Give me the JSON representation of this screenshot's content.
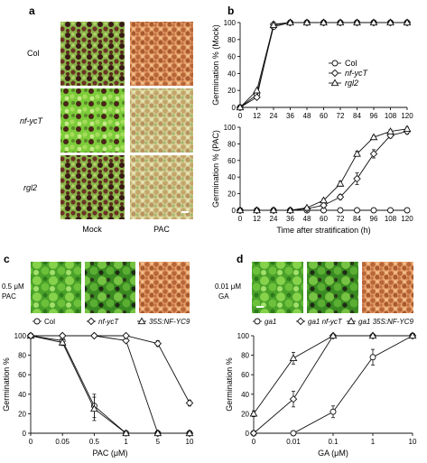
{
  "panel_letters": {
    "a": "a",
    "b": "b",
    "c": "c",
    "d": "d"
  },
  "panel_a": {
    "row_labels": [
      "Col",
      "nf-ycT",
      "rgl2"
    ],
    "column_labels": [
      "Mock",
      "PAC"
    ]
  },
  "panel_c_photo_label": [
    "0.5 μM",
    "PAC"
  ],
  "panel_d_photo_label": [
    "0.01 μM",
    "GA"
  ],
  "colors": {
    "ink": "#111111",
    "seedling_green": "#7ccc3a",
    "seed_brown": "#b8663a",
    "dark_purple": "#4a2418"
  },
  "chart_data": [
    {
      "id": "b_mock",
      "type": "line",
      "ylabel": "Germination % (Mock)",
      "xlabel": "",
      "x": [
        0,
        12,
        24,
        36,
        48,
        60,
        72,
        84,
        96,
        108,
        120
      ],
      "x_ticks": [
        "0",
        "12",
        "24",
        "36",
        "48",
        "60",
        "72",
        "84",
        "96",
        "108",
        "120"
      ],
      "y_ticks": [
        "0",
        "20",
        "40",
        "60",
        "80",
        "100"
      ],
      "xlim": [
        0,
        120
      ],
      "ylim": [
        0,
        100
      ],
      "legend": "right",
      "series": [
        {
          "name": "Col",
          "marker": "circle",
          "values": [
            0,
            15,
            95,
            100,
            100,
            100,
            100,
            100,
            100,
            100,
            100
          ]
        },
        {
          "name": "nf-ycT",
          "marker": "diamond",
          "values": [
            0,
            12,
            98,
            100,
            100,
            100,
            100,
            100,
            100,
            100,
            100
          ]
        },
        {
          "name": "rgl2",
          "marker": "triangle",
          "values": [
            0,
            20,
            97,
            100,
            100,
            100,
            100,
            100,
            100,
            100,
            100
          ]
        }
      ]
    },
    {
      "id": "b_pac",
      "type": "line",
      "ylabel": "Germination % (PAC)",
      "xlabel": "Time after stratification (h)",
      "x": [
        0,
        12,
        24,
        36,
        48,
        60,
        72,
        84,
        96,
        108,
        120
      ],
      "x_ticks": [
        "0",
        "12",
        "24",
        "36",
        "48",
        "60",
        "72",
        "84",
        "96",
        "108",
        "120"
      ],
      "y_ticks": [
        "0",
        "20",
        "40",
        "60",
        "80",
        "100"
      ],
      "xlim": [
        0,
        120
      ],
      "ylim": [
        0,
        100
      ],
      "series": [
        {
          "name": "Col",
          "marker": "circle",
          "values": [
            0,
            0,
            0,
            0,
            0,
            0,
            0,
            0,
            0,
            0,
            0
          ]
        },
        {
          "name": "nf-ycT",
          "marker": "diamond",
          "values": [
            0,
            0,
            0,
            0,
            2,
            6,
            16,
            38,
            68,
            90,
            95
          ],
          "errors": [
            0,
            0,
            0,
            0,
            0,
            2,
            3,
            7,
            5,
            3,
            3
          ]
        },
        {
          "name": "rgl2",
          "marker": "triangle",
          "values": [
            0,
            0,
            0,
            0,
            3,
            12,
            32,
            68,
            88,
            95,
            98
          ],
          "errors": [
            0,
            0,
            0,
            0,
            0,
            2,
            3,
            3,
            2,
            2,
            2
          ]
        }
      ]
    },
    {
      "id": "c",
      "type": "line",
      "ylabel": "Germination %",
      "xlabel": "PAC (μM)",
      "categories": [
        "0",
        "0.05",
        "0.5",
        "1",
        "5",
        "10"
      ],
      "y_ticks": [
        "0",
        "20",
        "40",
        "60",
        "80",
        "100"
      ],
      "ylim": [
        0,
        100
      ],
      "legend": "top",
      "series": [
        {
          "name": "Col",
          "marker": "circle",
          "values": [
            100,
            95,
            28,
            0,
            0,
            0
          ],
          "errors": [
            0,
            3,
            12,
            0,
            0,
            0
          ]
        },
        {
          "name": "nf-ycT",
          "marker": "diamond",
          "values": [
            100,
            100,
            100,
            95,
            0,
            0
          ],
          "errors": [
            0,
            0,
            0,
            2,
            0,
            0
          ]
        },
        {
          "name": "35S:NF-YC9",
          "marker": "triangle",
          "values": [
            100,
            93,
            25,
            0,
            0,
            0
          ],
          "errors": [
            0,
            3,
            12,
            0,
            0,
            0
          ]
        }
      ],
      "extra_series": {
        "name": "nf-ycT_high",
        "values": [
          100,
          100,
          100,
          100,
          92,
          31
        ],
        "errors": [
          0,
          0,
          0,
          0,
          3,
          3
        ]
      }
    },
    {
      "id": "d",
      "type": "line",
      "ylabel": "Germination %",
      "xlabel": "GA (μM)",
      "categories": [
        "0",
        "0.01",
        "0.1",
        "1",
        "10"
      ],
      "y_ticks": [
        "0",
        "20",
        "40",
        "60",
        "80",
        "100"
      ],
      "ylim": [
        0,
        100
      ],
      "legend": "top",
      "series": [
        {
          "name": "ga1",
          "marker": "circle",
          "values": [
            0,
            0,
            22,
            78,
            100
          ],
          "errors": [
            0,
            0,
            6,
            8,
            0
          ]
        },
        {
          "name": "ga1 nf-ycT",
          "marker": "diamond",
          "values": [
            0,
            35,
            100,
            100,
            100
          ],
          "errors": [
            0,
            8,
            0,
            0,
            0
          ]
        },
        {
          "name": "ga1 35S:NF-YC9",
          "marker": "triangle",
          "values": [
            20,
            77,
            100,
            100,
            100
          ],
          "errors": [
            3,
            6,
            0,
            0,
            0
          ]
        }
      ]
    }
  ]
}
